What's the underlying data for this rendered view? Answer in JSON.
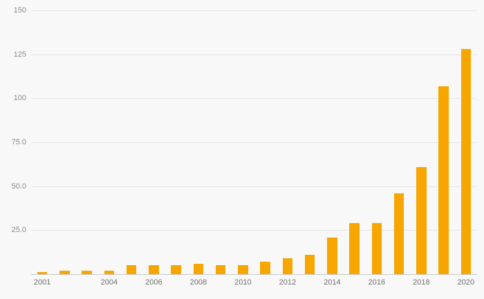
{
  "chart_data": {
    "type": "bar",
    "title": "",
    "xlabel": "",
    "ylabel": "",
    "categories": [
      "2001",
      "2002",
      "2003",
      "2004",
      "2005",
      "2006",
      "2007",
      "2008",
      "2009",
      "2010",
      "2011",
      "2012",
      "2013",
      "2014",
      "2015",
      "2016",
      "2017",
      "2018",
      "2019",
      "2020"
    ],
    "values": [
      1,
      2,
      2,
      2,
      5,
      5,
      5,
      6,
      5,
      5,
      7,
      9,
      11,
      21,
      29,
      29,
      46,
      61,
      107,
      128
    ],
    "ylim": [
      0,
      150
    ],
    "y_ticks": [
      {
        "value": 150,
        "label": "150"
      },
      {
        "value": 125,
        "label": "125"
      },
      {
        "value": 100,
        "label": "100"
      },
      {
        "value": 75,
        "label": "75.0"
      },
      {
        "value": 50,
        "label": "50.0"
      },
      {
        "value": 25,
        "label": "25.0"
      }
    ],
    "x_ticks": [
      {
        "index": 0,
        "label": "2001"
      },
      {
        "index": 3,
        "label": "2004"
      },
      {
        "index": 5,
        "label": "2006"
      },
      {
        "index": 7,
        "label": "2008"
      },
      {
        "index": 9,
        "label": "2010"
      },
      {
        "index": 11,
        "label": "2012"
      },
      {
        "index": 13,
        "label": "2014"
      },
      {
        "index": 15,
        "label": "2016"
      },
      {
        "index": 17,
        "label": "2018"
      },
      {
        "index": 19,
        "label": "2020"
      }
    ],
    "bar_color": "#f7a600",
    "background_color": "#f8f8f8",
    "grid_color": "#e5e5e5",
    "axis_line_color": "#c9c9c9",
    "legend": "none",
    "grid": "horizontal"
  }
}
